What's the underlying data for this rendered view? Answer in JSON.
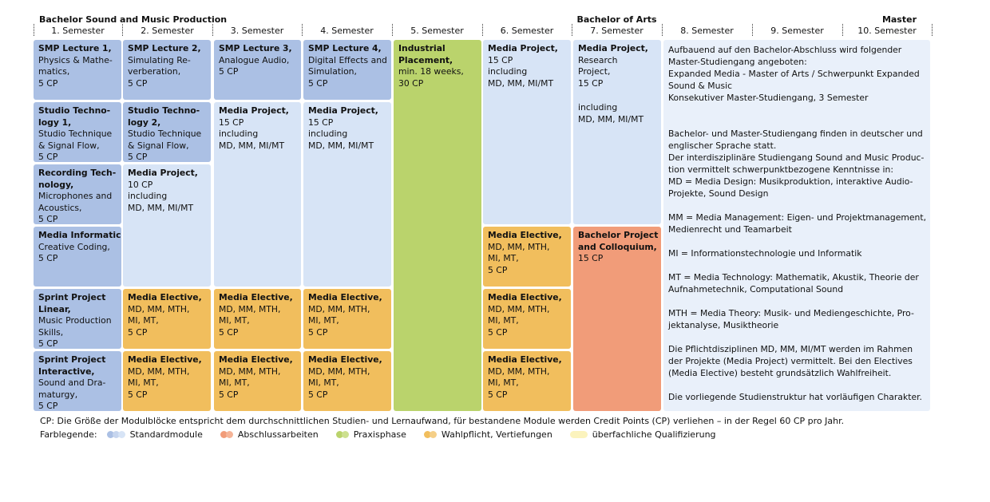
{
  "header": {
    "program": "Bachelor Sound and Music Production",
    "degree": "Bachelor of Arts",
    "master": "Master",
    "semesters": [
      "1. Semester",
      "2. Semester",
      "3. Semester",
      "4. Semester",
      "5. Semester",
      "6. Semester",
      "7. Semester",
      "8. Semester",
      "9. Semester",
      "10. Semester"
    ]
  },
  "modules": [
    {
      "title": [
        "SMP Lecture 1,"
      ],
      "lines": [
        "Physics & Mathe-",
        "matics,",
        "5 CP"
      ],
      "color": "#abc0e4"
    },
    {
      "title": [
        "Studio Techno-",
        "logy 1,"
      ],
      "lines": [
        "Studio Technique",
        "& Signal Flow,",
        "5 CP"
      ],
      "color": "#abc0e4"
    },
    {
      "title": [
        "Recording Tech-",
        "nology,"
      ],
      "lines": [
        "Microphones and",
        "Acoustics,",
        "5 CP"
      ],
      "color": "#abc0e4"
    },
    {
      "title": [
        "Media Informatics"
      ],
      "lines": [
        "Creative Coding,",
        "5 CP"
      ],
      "color": "#abc0e4"
    },
    {
      "title": [
        "Sprint Project",
        "Linear,"
      ],
      "lines": [
        "Music Production",
        "Skills,",
        "5 CP"
      ],
      "color": "#abc0e4"
    },
    {
      "title": [
        "Sprint Project",
        "Interactive,"
      ],
      "lines": [
        "Sound and Dra-",
        "maturgy,",
        "5 CP"
      ],
      "color": "#abc0e4"
    },
    {
      "title": [
        "SMP Lecture 2,"
      ],
      "lines": [
        "Simulating Re-",
        "verberation,",
        "5 CP"
      ],
      "color": "#abc0e4"
    },
    {
      "title": [
        "Studio Techno-",
        "logy 2,"
      ],
      "lines": [
        "Studio Technique",
        "& Signal Flow,",
        "5 CP"
      ],
      "color": "#abc0e4"
    },
    {
      "title": [
        "Media Project,"
      ],
      "lines": [
        "10 CP",
        "including",
        "MD, MM, MI/MT"
      ],
      "color": "#d7e4f6"
    },
    {
      "title": [
        "Media Elective,"
      ],
      "lines": [
        "MD, MM, MTH,",
        "MI, MT,",
        "5 CP"
      ],
      "color": "#f1be5d"
    },
    {
      "title": [
        "Media Elective,"
      ],
      "lines": [
        "MD, MM, MTH,",
        "MI, MT,",
        "5 CP"
      ],
      "color": "#f1be5d"
    },
    {
      "title": [
        "SMP Lecture 3,"
      ],
      "lines": [
        "Analogue Audio,",
        "5 CP"
      ],
      "color": "#abc0e4"
    },
    {
      "title": [
        "Media Project,"
      ],
      "lines": [
        "15 CP",
        "including",
        "MD, MM, MI/MT"
      ],
      "color": "#d7e4f6"
    },
    {
      "title": [
        "Media Elective,"
      ],
      "lines": [
        "MD, MM, MTH,",
        "MI, MT,",
        "5 CP"
      ],
      "color": "#f1be5d"
    },
    {
      "title": [
        "Media Elective,"
      ],
      "lines": [
        "MD, MM, MTH,",
        "MI, MT,",
        "5 CP"
      ],
      "color": "#f1be5d"
    },
    {
      "title": [
        "SMP Lecture 4,"
      ],
      "lines": [
        "Digital Effects and",
        "Simulation,",
        "5 CP"
      ],
      "color": "#abc0e4"
    },
    {
      "title": [
        "Media Project,"
      ],
      "lines": [
        "15 CP",
        "including",
        "MD, MM, MI/MT"
      ],
      "color": "#d7e4f6"
    },
    {
      "title": [
        "Media Elective,"
      ],
      "lines": [
        "MD, MM, MTH,",
        "MI, MT,",
        "5 CP"
      ],
      "color": "#f1be5d"
    },
    {
      "title": [
        "Media Elective,"
      ],
      "lines": [
        "MD, MM, MTH,",
        "MI, MT,",
        "5 CP"
      ],
      "color": "#f1be5d"
    },
    {
      "title": [
        "Industrial",
        "Placement,"
      ],
      "lines": [
        "min. 18 weeks,",
        "30 CP"
      ],
      "color": "#bad36c"
    },
    {
      "title": [
        "Media Project,"
      ],
      "lines": [
        "15 CP",
        "including",
        "MD, MM, MI/MT"
      ],
      "color": "#d7e4f6"
    },
    {
      "title": [
        "Media Elective,"
      ],
      "lines": [
        "MD, MM, MTH,",
        "MI, MT,",
        "5 CP"
      ],
      "color": "#f1be5d"
    },
    {
      "title": [
        "Media Elective,"
      ],
      "lines": [
        "MD, MM, MTH,",
        "MI, MT,",
        "5 CP"
      ],
      "color": "#f1be5d"
    },
    {
      "title": [
        "Media Elective,"
      ],
      "lines": [
        "MD, MM, MTH,",
        "MI, MT,",
        "5 CP"
      ],
      "color": "#f1be5d"
    },
    {
      "title": [
        "Media Project,"
      ],
      "lines": [
        "Research",
        "Project,",
        "15 CP"
      ],
      "lines2": [
        "including",
        "MD, MM, MI/MT"
      ],
      "color": "#d7e4f6"
    },
    {
      "title": [
        "Bachelor Project",
        "and Colloquium,"
      ],
      "lines": [
        "15 CP"
      ],
      "color": "#f19c79"
    }
  ],
  "info": {
    "color": "#e9f0fa",
    "paragraphs": [
      [
        "Aufbauend auf den Bachelor-Abschluss wird folgender",
        "Master-Studiengang angeboten:",
        "Expanded Media - Master of Arts / Schwerpunkt Expanded",
        "Sound & Music",
        "Konsekutiver Master-Studiengang, 3 Semester"
      ],
      [
        "Bachelor- und Master-Studiengang finden in deutscher und",
        "englischer Sprache statt.",
        "Der interdisziplinäre Studiengang  Sound and Music Produc-",
        "tion vermittelt schwerpunktbezogene Kenntnisse in:",
        "MD = Media Design: Musikproduktion, interaktive Audio-",
        "Projekte, Sound Design"
      ],
      [
        "MM = Media Management: Eigen- und Projektmanagement,",
        "Medienrecht und Teamarbeit"
      ],
      [
        "MI = Informationstechnologie und Informatik"
      ],
      [
        "MT = Media Technology: Mathematik, Akustik, Theorie der",
        "Aufnahmetechnik, Computational Sound"
      ],
      [
        "MTH = Media Theory: Musik- und Mediengeschichte, Pro-",
        "jektanalyse, Musiktheorie"
      ],
      [
        "Die Pflichtdisziplinen MD, MM, MI/MT werden im Rahmen",
        "der Projekte (Media Project) vermittelt. Bei den Electives",
        "(Media Elective) besteht grundsätzlich Wahlfreiheit."
      ],
      [
        "Die vorliegende Studienstruktur hat vorläufigen Charakter."
      ]
    ]
  },
  "footnote": "CP: Die Größe der Modulblöcke entspricht dem durchschnittlichen Studien- und Lernaufwand, für bestandene Module werden Credit Points (CP) verliehen – in der Regel 60 CP pro Jahr.",
  "legend": {
    "label": "Farblegende:",
    "items": [
      {
        "name": "Standardmodule",
        "colors": [
          "#abc0e4",
          "#c6d5ee",
          "#d7e4f6"
        ]
      },
      {
        "name": "Abschlussarbeiten",
        "colors": [
          "#f19c79",
          "#f5b497"
        ]
      },
      {
        "name": "Praxisphase",
        "colors": [
          "#bad36c",
          "#cde08f"
        ]
      },
      {
        "name": "Wahlpflicht, Vertiefungen",
        "colors": [
          "#f1be5d",
          "#f5cf87"
        ]
      },
      {
        "name": "überfachliche Qualifizierung",
        "colors": [
          "#fbf3bd"
        ]
      }
    ]
  }
}
